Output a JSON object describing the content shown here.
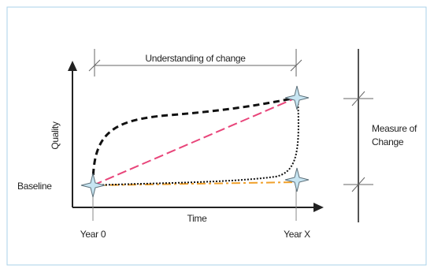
{
  "diagram": {
    "top_bracket_label": "Understanding of change",
    "y_axis_label": "Quality",
    "x_axis_label": "Time",
    "baseline_label": "Baseline",
    "x_start_label": "Year 0",
    "x_end_label": "Year X",
    "measure_label_line1": "Measure of",
    "measure_label_line2": "Change"
  },
  "colors": {
    "frame_border": "#a9d1e8",
    "axis": "#222222",
    "curve_black": "#111111",
    "curve_pink": "#e8457a",
    "curve_orange": "#f0a02a",
    "bracket": "#666666",
    "star_fill": "#c7e5f2",
    "star_stroke": "#5b6e78"
  },
  "icons": [
    "star-marker-icon"
  ]
}
